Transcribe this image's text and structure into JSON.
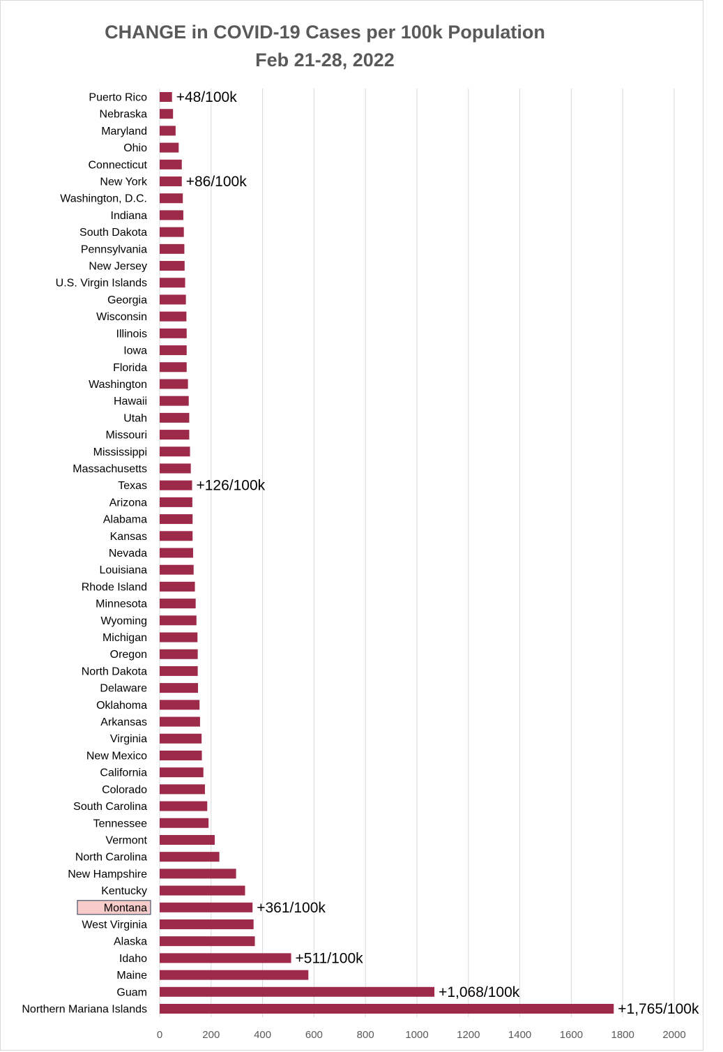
{
  "chart_data": {
    "type": "bar",
    "orientation": "horizontal",
    "title": "CHANGE in COVID-19 Cases per 100k Population",
    "subtitle": "Feb 21-28, 2022",
    "xlabel": "",
    "ylabel": "",
    "xlim": [
      0,
      2000
    ],
    "xticks": [
      "0",
      "200",
      "400",
      "600",
      "800",
      "1000",
      "1200",
      "1400",
      "1600",
      "1800",
      "2000"
    ],
    "grid": "vertical",
    "legend": "none",
    "bar_color": "#9E2A4A",
    "highlight_fill": "#F8CBCB",
    "highlight_border": "#44546A",
    "highlighted_category": "Montana",
    "categories": [
      "Puerto Rico",
      "Nebraska",
      "Maryland",
      "Ohio",
      "Connecticut",
      "New York",
      "Washington, D.C.",
      "Indiana",
      "South Dakota",
      "Pennsylvania",
      "New Jersey",
      "U.S. Virgin Islands",
      "Georgia",
      "Wisconsin",
      "Illinois",
      "Iowa",
      "Florida",
      "Washington",
      "Hawaii",
      "Utah",
      "Missouri",
      "Mississippi",
      "Massachusetts",
      "Texas",
      "Arizona",
      "Alabama",
      "Kansas",
      "Nevada",
      "Louisiana",
      "Rhode Island",
      "Minnesota",
      "Wyoming",
      "Michigan",
      "Oregon",
      "North Dakota",
      "Delaware",
      "Oklahoma",
      "Arkansas",
      "Virginia",
      "New Mexico",
      "California",
      "Colorado",
      "South Carolina",
      "Tennessee",
      "Vermont",
      "North Carolina",
      "New Hampshire",
      "Kentucky",
      "Montana",
      "West Virginia",
      "Alaska",
      "Idaho",
      "Maine",
      "Guam",
      "Northern Mariana Islands"
    ],
    "values": [
      48,
      52,
      62,
      74,
      86,
      86,
      90,
      92,
      94,
      96,
      97,
      99,
      102,
      104,
      105,
      105,
      105,
      110,
      113,
      115,
      115,
      118,
      121,
      126,
      127,
      128,
      128,
      130,
      132,
      137,
      140,
      143,
      147,
      148,
      148,
      149,
      155,
      157,
      163,
      164,
      170,
      176,
      185,
      190,
      214,
      232,
      297,
      332,
      361,
      365,
      370,
      511,
      578,
      1068,
      1765
    ],
    "data_labels": [
      {
        "category": "Puerto Rico",
        "text": "+48/100k"
      },
      {
        "category": "New York",
        "text": "+86/100k"
      },
      {
        "category": "Texas",
        "text": "+126/100k"
      },
      {
        "category": "Montana",
        "text": "+361/100k"
      },
      {
        "category": "Idaho",
        "text": "+511/100k"
      },
      {
        "category": "Guam",
        "text": "+1,068/100k"
      },
      {
        "category": "Northern Mariana Islands",
        "text": "+1,765/100k"
      }
    ]
  }
}
